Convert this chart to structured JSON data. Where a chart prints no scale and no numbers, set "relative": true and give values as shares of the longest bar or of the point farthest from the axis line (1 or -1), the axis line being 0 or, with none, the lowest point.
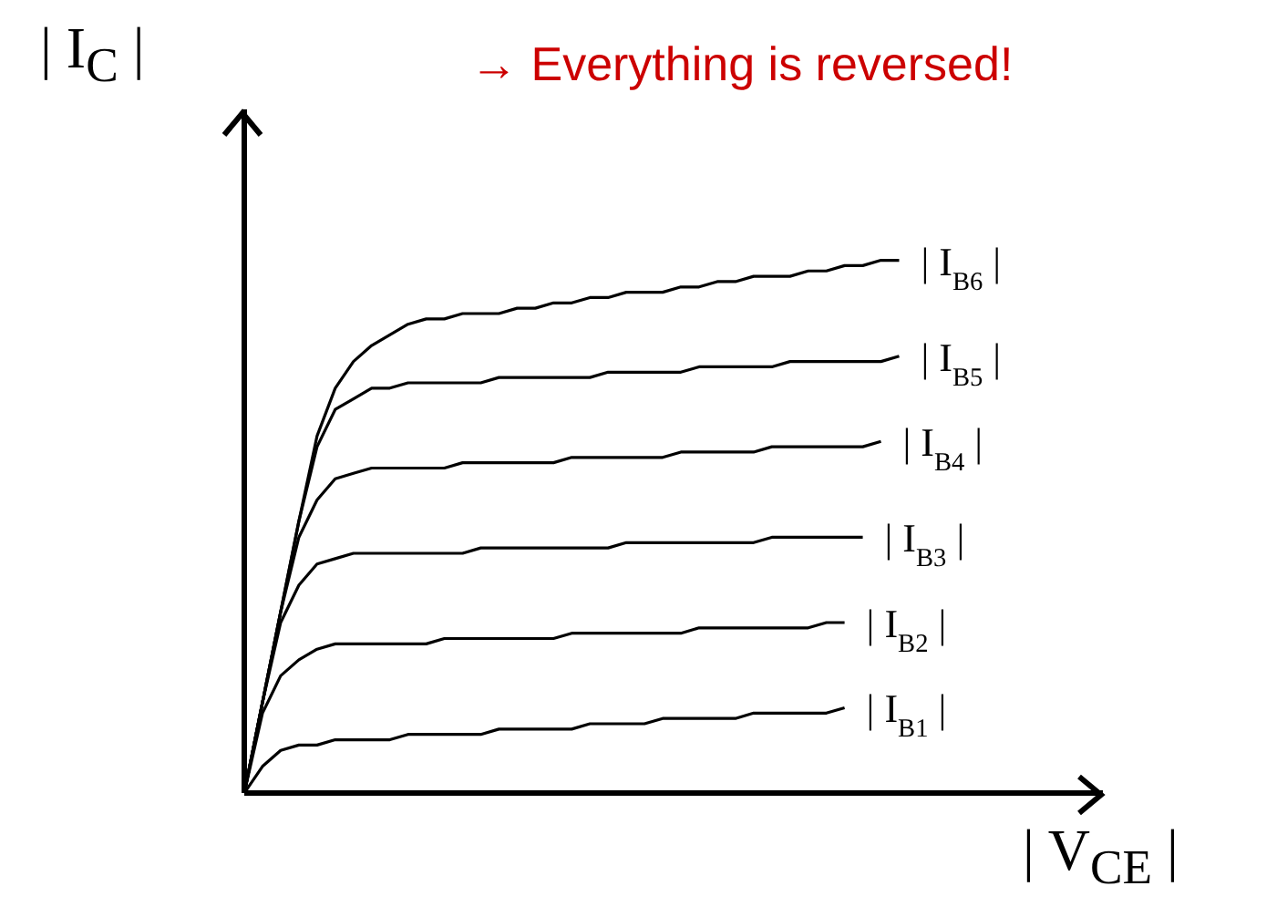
{
  "chart_data": {
    "type": "line",
    "relative": true,
    "xlabel": "| V$_{CE}$ |",
    "ylabel": "| I$_{C}$ |",
    "annotations": [
      "→ Everything is reversed!"
    ],
    "marker": "none",
    "line_style": "solid",
    "categories": [
      null,
      null,
      null,
      null,
      null,
      null,
      null,
      null,
      null,
      null,
      null,
      null,
      null,
      null,
      null,
      null,
      null,
      null,
      null,
      null,
      null,
      null,
      null,
      null,
      null,
      null,
      null,
      null,
      null,
      null,
      null,
      null,
      null,
      null,
      null,
      null,
      null
    ],
    "series": [
      {
        "name": "| I$_{B1}$ |",
        "color": "#000000",
        "values": [
          0,
          0.05,
          0.08,
          0.09,
          0.09,
          0.1,
          0.1,
          0.1,
          0.1,
          0.11,
          0.11,
          0.11,
          0.11,
          0.11,
          0.12,
          0.12,
          0.12,
          0.12,
          0.12,
          0.13,
          0.13,
          0.13,
          0.13,
          0.14,
          0.14,
          0.14,
          0.14,
          0.14,
          0.15,
          0.15,
          0.15,
          0.15,
          0.15,
          0.16,
          null,
          null,
          null
        ]
      },
      {
        "name": "| I$_{B2}$ |",
        "color": "#000000",
        "values": [
          0,
          0.15,
          0.22,
          0.25,
          0.27,
          0.28,
          0.28,
          0.28,
          0.28,
          0.28,
          0.28,
          0.29,
          0.29,
          0.29,
          0.29,
          0.29,
          0.29,
          0.29,
          0.3,
          0.3,
          0.3,
          0.3,
          0.3,
          0.3,
          0.3,
          0.31,
          0.31,
          0.31,
          0.31,
          0.31,
          0.31,
          0.31,
          0.32,
          0.32,
          null,
          null,
          null
        ]
      },
      {
        "name": "| I$_{B3}$ |",
        "color": "#000000",
        "values": [
          0,
          0.17,
          0.32,
          0.39,
          0.43,
          0.44,
          0.45,
          0.45,
          0.45,
          0.45,
          0.45,
          0.45,
          0.45,
          0.46,
          0.46,
          0.46,
          0.46,
          0.46,
          0.46,
          0.46,
          0.46,
          0.47,
          0.47,
          0.47,
          0.47,
          0.47,
          0.47,
          0.47,
          0.47,
          0.48,
          0.48,
          0.48,
          0.48,
          0.48,
          0.48,
          null,
          null
        ]
      },
      {
        "name": "| I$_{B4}$ |",
        "color": "#000000",
        "values": [
          0,
          0.17,
          0.34,
          0.48,
          0.55,
          0.59,
          0.6,
          0.61,
          0.61,
          0.61,
          0.61,
          0.61,
          0.62,
          0.62,
          0.62,
          0.62,
          0.62,
          0.62,
          0.63,
          0.63,
          0.63,
          0.63,
          0.63,
          0.63,
          0.64,
          0.64,
          0.64,
          0.64,
          0.64,
          0.65,
          0.65,
          0.65,
          0.65,
          0.65,
          0.65,
          0.66,
          null
        ]
      },
      {
        "name": "| I$_{B5}$ |",
        "color": "#000000",
        "values": [
          0,
          0.17,
          0.34,
          0.51,
          0.65,
          0.72,
          0.74,
          0.76,
          0.76,
          0.77,
          0.77,
          0.77,
          0.77,
          0.77,
          0.78,
          0.78,
          0.78,
          0.78,
          0.78,
          0.78,
          0.79,
          0.79,
          0.79,
          0.79,
          0.79,
          0.8,
          0.8,
          0.8,
          0.8,
          0.8,
          0.81,
          0.81,
          0.81,
          0.81,
          0.81,
          0.81,
          0.82
        ]
      },
      {
        "name": "| I$_{B6}$ |",
        "color": "#000000",
        "values": [
          0,
          0.17,
          0.34,
          0.51,
          0.67,
          0.76,
          0.81,
          0.84,
          0.86,
          0.88,
          0.89,
          0.89,
          0.9,
          0.9,
          0.9,
          0.91,
          0.91,
          0.92,
          0.92,
          0.93,
          0.93,
          0.94,
          0.94,
          0.94,
          0.95,
          0.95,
          0.96,
          0.96,
          0.97,
          0.97,
          0.97,
          0.98,
          0.98,
          0.99,
          0.99,
          1.0,
          1.0
        ]
      }
    ]
  }
}
